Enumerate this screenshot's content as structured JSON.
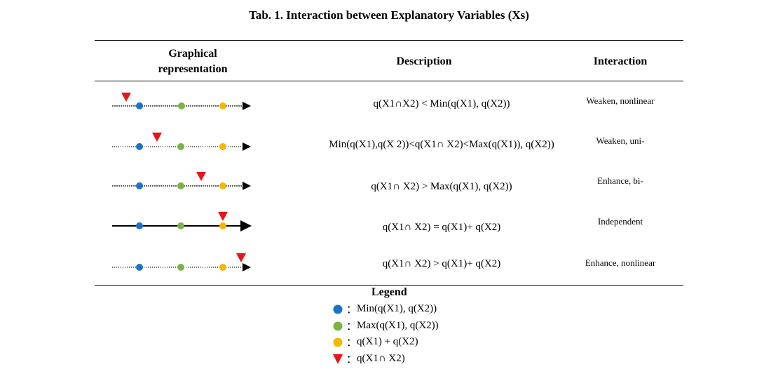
{
  "table": {
    "caption": "Tab. 1. Interaction between Explanatory Variables (Xs)",
    "headers": {
      "graphical_line1": "Graphical",
      "graphical_line2": "representation",
      "description": "Description",
      "interaction": "Interaction"
    },
    "rows": [
      {
        "description": "q(X1∩X2) < Min(q(X1), q(X2))",
        "interaction": "Weaken, nonlinear"
      },
      {
        "description": "Min(q(X1),q(X 2))<q(X1∩ X2)<Max(q(X1)), q(X2))",
        "interaction": "Weaken, uni-"
      },
      {
        "description": "q(X1∩ X2) > Max(q(X1), q(X2))",
        "interaction": "Enhance, bi-"
      },
      {
        "description": "q(X1∩ X2) = q(X1)+ q(X2)",
        "interaction": "Independent"
      },
      {
        "description": "q(X1∩ X2) > q(X1)+ q(X2)",
        "interaction": "Enhance, nonlinear"
      }
    ]
  },
  "legend": {
    "title": "Legend",
    "items": [
      {
        "text": "Min(q(X1), q(X2))",
        "color": "#1a73c9",
        "shape": "circle"
      },
      {
        "text": "Max(q(X1), q(X2))",
        "color": "#7cb342",
        "shape": "circle"
      },
      {
        "text": "q(X1) + q(X2)",
        "color": "#f5b800",
        "shape": "circle"
      },
      {
        "text": "q(X1∩ X2)",
        "color": "#e8141b",
        "shape": "triangle"
      }
    ],
    "separator": "："
  },
  "colors": {
    "min": "#1a73c9",
    "max": "#7cb342",
    "sum": "#f5b800",
    "interaction": "#e8141b"
  }
}
